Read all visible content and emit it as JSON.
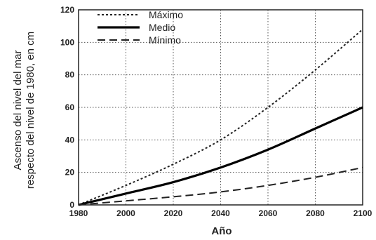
{
  "chart_data": {
    "type": "line",
    "xlabel": "Año",
    "ylabel_line1": "Ascenso    del    nivel    del    mar",
    "ylabel_line2": "respecto del nivel de 1980, en cm",
    "xlim": [
      1980,
      2100
    ],
    "ylim": [
      0,
      120
    ],
    "xticks": [
      1980,
      2000,
      2020,
      2040,
      2060,
      2080,
      2100
    ],
    "yticks": [
      0,
      20,
      40,
      60,
      80,
      100,
      120
    ],
    "grid": true,
    "legend_position": "top-left",
    "x": [
      1980,
      2000,
      2020,
      2040,
      2060,
      2080,
      2100
    ],
    "series": [
      {
        "name": "Máximo",
        "style": "dash-dot-dot",
        "color": "#222222",
        "values": [
          0,
          12,
          25,
          40,
          60,
          83,
          108
        ]
      },
      {
        "name": "Medio",
        "style": "solid",
        "color": "#000000",
        "values": [
          0,
          7,
          14,
          23,
          34,
          47,
          60
        ]
      },
      {
        "name": "Mínimo",
        "style": "dashed",
        "color": "#222222",
        "values": [
          0,
          2.5,
          5,
          8,
          12,
          17,
          23
        ]
      }
    ]
  }
}
